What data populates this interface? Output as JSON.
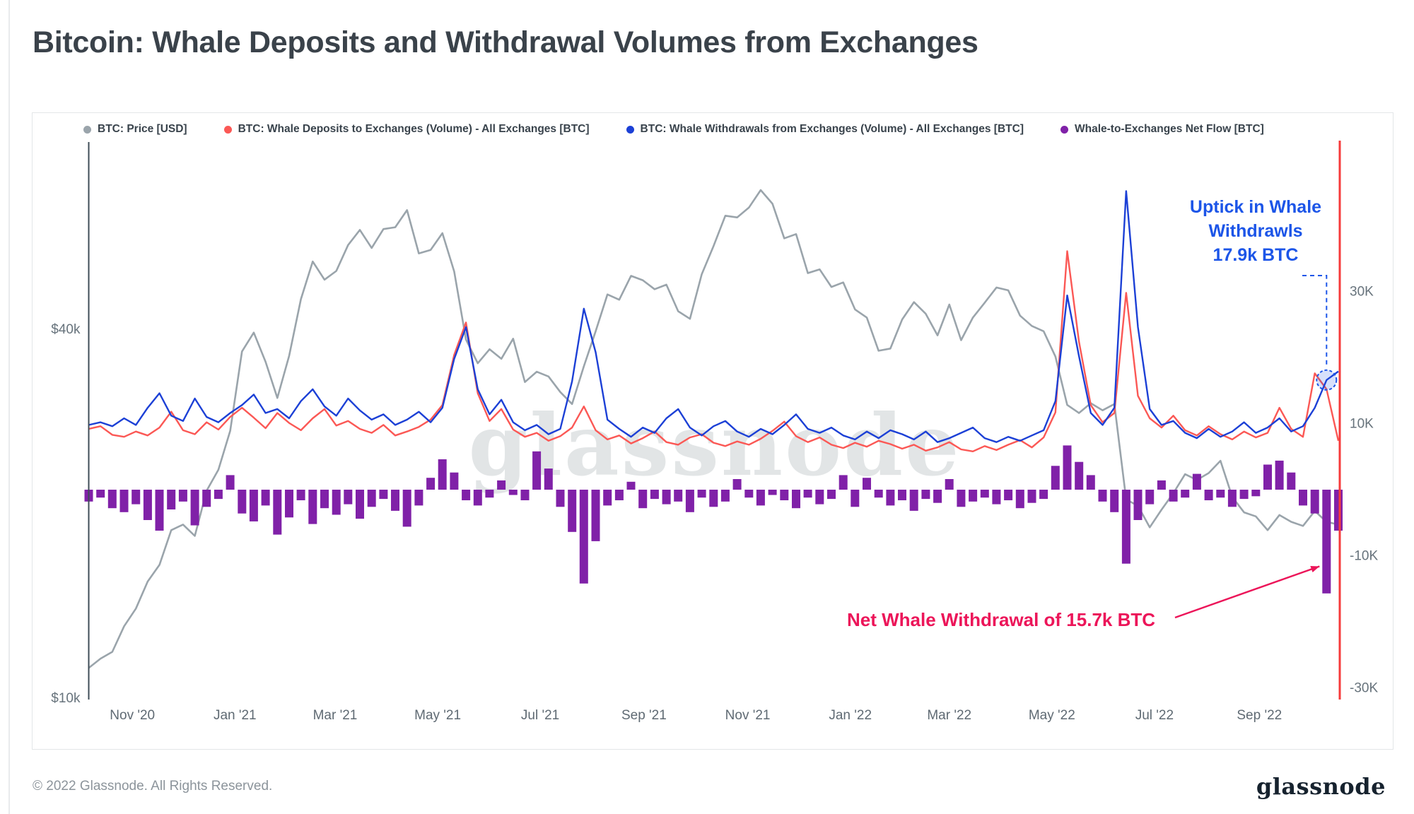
{
  "page": {
    "title": "Bitcoin: Whale Deposits and Withdrawal Volumes from Exchanges",
    "footer_left": "© 2022 Glassnode. All Rights Reserved.",
    "footer_logo": "glassnode",
    "watermark": "glassnode"
  },
  "colors": {
    "price": "#9aa4ab",
    "deposits": "#fb5855",
    "withdrawals": "#1c40d6",
    "netflow": "#8021a8",
    "right_axis_line": "#f63b3b",
    "annotation_blue": "#1c55e8",
    "annotation_red": "#ec1559"
  },
  "legend": {
    "items": [
      {
        "label": "BTC: Price [USD]",
        "color": "#9aa4ab"
      },
      {
        "label": "BTC: Whale Deposits to Exchanges (Volume) - All Exchanges [BTC]",
        "color": "#fb5855"
      },
      {
        "label": "BTC: Whale Withdrawals from Exchanges (Volume) - All Exchanges [BTC]",
        "color": "#1c40d6"
      },
      {
        "label": "Whale-to-Exchanges Net Flow [BTC]",
        "color": "#8021a8"
      }
    ]
  },
  "chart_data": {
    "type": "mixed",
    "title": "Bitcoin: Whale Deposits and Withdrawal Volumes from Exchanges",
    "x": {
      "unit": "week_index_from_oct_2020",
      "n_points": 107,
      "ticks": [
        {
          "label": "Nov '20",
          "pos": 3.7
        },
        {
          "label": "Jan '21",
          "pos": 12.4
        },
        {
          "label": "Mar '21",
          "pos": 20.9
        },
        {
          "label": "May '21",
          "pos": 29.6
        },
        {
          "label": "Jul '21",
          "pos": 38.3
        },
        {
          "label": "Sep '21",
          "pos": 47.1
        },
        {
          "label": "Nov '21",
          "pos": 55.9
        },
        {
          "label": "Jan '22",
          "pos": 64.6
        },
        {
          "label": "Mar '22",
          "pos": 73.0
        },
        {
          "label": "May '22",
          "pos": 81.7
        },
        {
          "label": "Jul '22",
          "pos": 90.4
        },
        {
          "label": "Sep '22",
          "pos": 99.3
        }
      ]
    },
    "price_axis": {
      "side": "left",
      "scale": "log",
      "unit": "USD",
      "ticks": [
        {
          "label": "$40k",
          "value_k_usd": 40
        },
        {
          "label": "$10k",
          "value_k_usd": 10
        }
      ]
    },
    "flow_axis": {
      "side": "right",
      "scale": "linear",
      "unit": "BTC",
      "range_k_btc": [
        -31.5,
        51
      ],
      "ticks": [
        {
          "label": "30K",
          "value_k_btc": 30
        },
        {
          "label": "10K",
          "value_k_btc": 10
        },
        {
          "label": "-10K",
          "value_k_btc": -10
        },
        {
          "label": "-30K",
          "value_k_btc": -30
        }
      ]
    },
    "series": [
      {
        "id": "price",
        "name": "BTC: Price [USD]",
        "type": "line",
        "axis": "price_usd_log",
        "unit": "thousand_usd",
        "color": "#9aa4ab",
        "values": [
          11.2,
          11.6,
          11.9,
          13.1,
          14.0,
          15.5,
          16.5,
          18.8,
          19.2,
          18.4,
          21.8,
          23.6,
          27.3,
          36.8,
          39.5,
          35.4,
          30.9,
          36.2,
          44.8,
          51.6,
          48.2,
          49.8,
          54.9,
          58.1,
          54.3,
          58.3,
          58.7,
          62.6,
          53.2,
          53.9,
          57.4,
          49.7,
          38.5,
          35.2,
          37.1,
          35.8,
          38.6,
          32.8,
          34.1,
          33.5,
          31.6,
          30.2,
          34.8,
          39.7,
          45.6,
          44.7,
          48.9,
          48.1,
          46.5,
          47.3,
          42.8,
          41.6,
          49.2,
          54.7,
          61.3,
          60.9,
          63.2,
          67.5,
          64.1,
          56.3,
          57.2,
          49.4,
          50.1,
          46.9,
          47.7,
          43.1,
          41.8,
          36.9,
          37.2,
          41.5,
          44.3,
          42.4,
          39.1,
          43.9,
          38.4,
          41.8,
          44.2,
          46.8,
          46.3,
          42.1,
          40.5,
          39.7,
          36.1,
          30.1,
          29.2,
          30.3,
          29.5,
          30.2,
          21.1,
          20.6,
          19.0,
          20.3,
          21.6,
          23.2,
          22.7,
          23.3,
          24.4,
          21.3,
          20.1,
          19.8,
          18.8,
          19.9,
          19.4,
          19.1,
          20.2,
          19.4,
          19.2
        ]
      },
      {
        "id": "deposits",
        "name": "BTC: Whale Deposits to Exchanges (Volume) - All Exchanges [BTC]",
        "type": "line",
        "axis": "flow_btc",
        "unit": "thousand_btc",
        "color": "#fb5855",
        "values": [
          9.2,
          9.6,
          8.3,
          8.0,
          8.8,
          8.2,
          9.4,
          11.8,
          9.0,
          8.4,
          10.2,
          9.1,
          11.0,
          12.4,
          10.9,
          9.3,
          11.6,
          10.1,
          9.0,
          10.8,
          12.2,
          9.7,
          10.4,
          9.2,
          8.6,
          9.8,
          8.2,
          8.8,
          9.5,
          10.6,
          12.8,
          20.4,
          25.3,
          14.6,
          10.4,
          12.2,
          9.1,
          8.0,
          8.6,
          7.4,
          8.1,
          9.4,
          12.6,
          9.0,
          7.6,
          8.2,
          7.0,
          7.8,
          8.8,
          7.2,
          6.8,
          7.9,
          8.4,
          7.1,
          6.6,
          7.3,
          6.8,
          7.7,
          8.9,
          10.3,
          8.1,
          7.2,
          7.9,
          6.8,
          6.3,
          7.1,
          6.5,
          7.4,
          6.9,
          6.2,
          6.8,
          5.9,
          6.4,
          7.2,
          6.1,
          5.8,
          6.6,
          6.0,
          6.8,
          7.5,
          6.4,
          7.9,
          11.7,
          36.1,
          22.4,
          12.8,
          10.2,
          11.6,
          29.8,
          14.2,
          10.8,
          9.4,
          11.2,
          9.0,
          8.2,
          9.6,
          8.4,
          7.6,
          8.8,
          7.9,
          8.6,
          12.4,
          9.2,
          8.0,
          17.6,
          15.2,
          7.4
        ]
      },
      {
        "id": "withdrawals",
        "name": "BTC: Whale Withdrawals from Exchanges (Volume) - All Exchanges [BTC]",
        "type": "line",
        "axis": "flow_btc",
        "unit": "thousand_btc",
        "color": "#1c40d6",
        "values": [
          9.8,
          10.2,
          9.6,
          10.8,
          9.8,
          12.4,
          14.6,
          11.2,
          10.4,
          13.8,
          11.0,
          10.2,
          11.6,
          12.8,
          14.4,
          11.6,
          12.2,
          10.8,
          13.4,
          15.2,
          12.6,
          11.2,
          13.8,
          12.0,
          10.6,
          11.4,
          9.8,
          10.6,
          11.8,
          10.2,
          12.4,
          19.8,
          24.6,
          15.2,
          11.4,
          13.6,
          10.2,
          9.0,
          9.8,
          8.4,
          9.2,
          16.4,
          27.4,
          20.8,
          10.6,
          9.2,
          8.0,
          9.4,
          8.6,
          10.8,
          12.2,
          9.4,
          8.2,
          9.6,
          10.4,
          8.8,
          8.0,
          9.2,
          8.4,
          9.8,
          11.4,
          9.2,
          8.6,
          9.4,
          8.2,
          7.6,
          8.8,
          7.8,
          9.0,
          8.4,
          7.6,
          8.8,
          7.2,
          7.8,
          8.6,
          9.4,
          7.8,
          7.2,
          8.0,
          7.4,
          8.2,
          9.0,
          13.4,
          29.4,
          20.2,
          11.6,
          9.8,
          12.4,
          45.2,
          24.6,
          12.2,
          9.8,
          10.4,
          8.6,
          7.8,
          9.2,
          8.0,
          8.8,
          10.2,
          8.6,
          9.4,
          10.8,
          8.8,
          9.6,
          12.4,
          16.6,
          17.9
        ]
      },
      {
        "id": "netflow",
        "name": "Whale-to-Exchanges Net Flow [BTC]",
        "type": "bar",
        "axis": "flow_btc",
        "unit": "thousand_btc",
        "color": "#8021a8",
        "values": [
          -1.8,
          -1.2,
          -2.8,
          -3.4,
          -2.2,
          -4.6,
          -6.2,
          -3.0,
          -1.8,
          -5.4,
          -2.6,
          -1.4,
          2.2,
          -3.6,
          -4.8,
          -2.4,
          -6.8,
          -4.2,
          -1.6,
          -5.2,
          -2.8,
          -3.8,
          -2.2,
          -4.4,
          -2.6,
          -1.4,
          -3.2,
          -5.6,
          -2.4,
          1.8,
          4.6,
          2.6,
          -1.6,
          -2.4,
          -1.2,
          1.4,
          -0.8,
          -1.6,
          5.8,
          3.2,
          -2.6,
          -6.4,
          -14.2,
          -7.8,
          -2.4,
          -1.6,
          1.2,
          -2.8,
          -1.4,
          -2.2,
          -1.8,
          -3.4,
          -1.2,
          -2.6,
          -1.8,
          1.6,
          -1.2,
          -2.4,
          -0.8,
          -1.6,
          -2.8,
          -1.2,
          -2.2,
          -1.4,
          2.2,
          -2.6,
          1.8,
          -1.2,
          -2.4,
          -1.6,
          -3.2,
          -1.4,
          -2.0,
          1.6,
          -2.6,
          -1.8,
          -1.2,
          -2.2,
          -1.6,
          -2.8,
          -2.0,
          -1.4,
          3.6,
          6.7,
          4.2,
          2.2,
          -1.8,
          -3.4,
          -11.2,
          -4.6,
          -2.2,
          1.4,
          -1.8,
          -1.2,
          2.4,
          -1.6,
          -1.2,
          -2.6,
          -1.4,
          -1.0,
          3.8,
          4.4,
          2.6,
          -2.4,
          -3.6,
          -15.7,
          -6.2
        ]
      }
    ],
    "annotations": [
      {
        "id": "uptick-in-whale-withdrawals",
        "lines": [
          "Uptick in Whale",
          "Withdrawls",
          "17.9k BTC"
        ],
        "color": "#1c55e8",
        "target_week": 105,
        "target_value_k_btc": 16.6
      },
      {
        "id": "net-whale-withdrawal",
        "text": "Net Whale Withdrawal of 15.7k BTC",
        "color": "#ec1559",
        "target_week": 105,
        "target_value_k_btc": -11.6
      }
    ]
  }
}
